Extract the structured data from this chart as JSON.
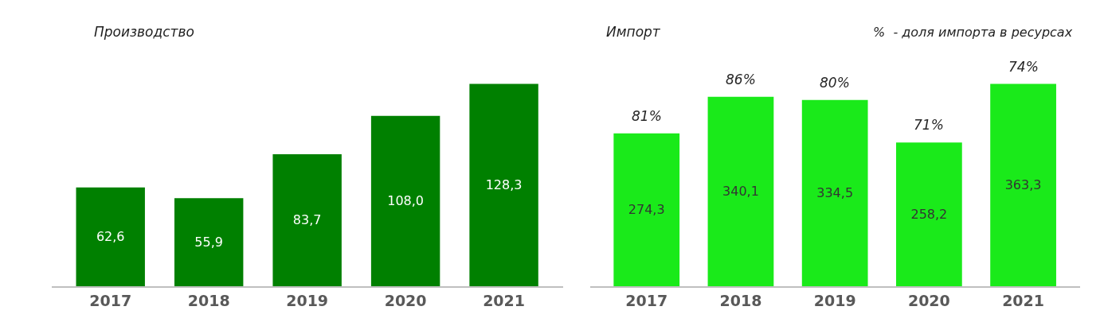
{
  "chart_data": [
    {
      "type": "bar",
      "title": "Производство",
      "categories": [
        "2017",
        "2018",
        "2019",
        "2020",
        "2021"
      ],
      "values": [
        62.6,
        55.9,
        83.7,
        108.0,
        128.3
      ],
      "color": "#008000",
      "value_labels": [
        "62,6",
        "55,9",
        "83,7",
        "108,0",
        "128,3"
      ]
    },
    {
      "type": "bar",
      "title": "Импорт",
      "categories": [
        "2017",
        "2018",
        "2019",
        "2020",
        "2021"
      ],
      "values": [
        274.3,
        340.1,
        334.5,
        258.2,
        363.3
      ],
      "color": "#1aea1a",
      "value_labels": [
        "274,3",
        "340,1",
        "334,5",
        "258,2",
        "363,3"
      ],
      "annotations": [
        "%  - доля импорта в ресурсах",
        {
          "text": "81%",
          "x": "2017",
          "y": 274.3
        },
        {
          "text": "86%",
          "x": "2018",
          "y": 340.1
        },
        {
          "text": "80%",
          "x": "2019",
          "y": 334.5
        },
        {
          "text": "71%",
          "x": "2020",
          "y": 258.2
        },
        {
          "text": "74%",
          "x": "2021",
          "y": 363.3
        }
      ]
    }
  ]
}
